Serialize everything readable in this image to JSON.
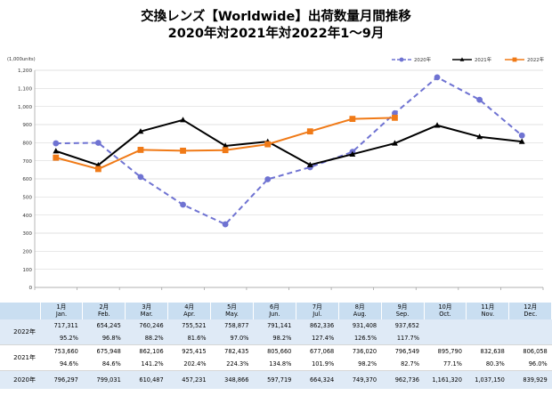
{
  "title_line1": "交換レンズ【Worldwide】出荷数量月間推移",
  "title_line2": "2020年対2021年対2022年1～9月",
  "chart_data": {
    "type": "line",
    "unit_label": "(1,000units)",
    "ylim": [
      0,
      1200
    ],
    "yticks": [
      "0",
      "100",
      "200",
      "300",
      "400",
      "500",
      "600",
      "700",
      "800",
      "900",
      "1,000",
      "1,100",
      "1,200"
    ],
    "grid": true,
    "legend_position": "top-right",
    "categories": [
      "1月",
      "2月",
      "3月",
      "4月",
      "5月",
      "6月",
      "7月",
      "8月",
      "9月",
      "10月",
      "11月",
      "12月"
    ],
    "series": [
      {
        "name": "2020年",
        "color": "#6f73d2",
        "dashed": true,
        "marker": "circle",
        "values": [
          796.297,
          799.031,
          610.487,
          457.231,
          348.866,
          597.719,
          664.324,
          749.37,
          962.736,
          1161.32,
          1037.15,
          839.929
        ]
      },
      {
        "name": "2021年",
        "color": "#000000",
        "dashed": false,
        "marker": "triangle",
        "values": [
          753.66,
          675.948,
          862.106,
          925.415,
          782.435,
          805.66,
          677.068,
          736.02,
          796.549,
          895.79,
          832.638,
          806.058
        ]
      },
      {
        "name": "2022年",
        "color": "#f07a17",
        "dashed": false,
        "marker": "square",
        "values": [
          717.311,
          654.245,
          760.246,
          755.521,
          758.877,
          791.141,
          862.336,
          931.408,
          937.652,
          null,
          null,
          null
        ]
      }
    ]
  },
  "table": {
    "months": [
      {
        "jp": "1月",
        "en": "Jan."
      },
      {
        "jp": "2月",
        "en": "Feb."
      },
      {
        "jp": "3月",
        "en": "Mar."
      },
      {
        "jp": "4月",
        "en": "Apr."
      },
      {
        "jp": "5月",
        "en": "May."
      },
      {
        "jp": "6月",
        "en": "Jun."
      },
      {
        "jp": "7月",
        "en": "Jul."
      },
      {
        "jp": "8月",
        "en": "Aug."
      },
      {
        "jp": "9月",
        "en": "Sep."
      },
      {
        "jp": "10月",
        "en": "Oct."
      },
      {
        "jp": "11月",
        "en": "Nov."
      },
      {
        "jp": "12月",
        "en": "Dec."
      }
    ],
    "rows": [
      {
        "label": "2022年",
        "values": [
          "717,311",
          "654,245",
          "760,246",
          "755,521",
          "758,877",
          "791,141",
          "862,336",
          "931,408",
          "937,652",
          "",
          "",
          ""
        ],
        "pcts": [
          "95.2%",
          "96.8%",
          "88.2%",
          "81.6%",
          "97.0%",
          "98.2%",
          "127.4%",
          "126.5%",
          "117.7%",
          "",
          "",
          ""
        ]
      },
      {
        "label": "2021年",
        "values": [
          "753,660",
          "675,948",
          "862,106",
          "925,415",
          "782,435",
          "805,660",
          "677,068",
          "736,020",
          "796,549",
          "895,790",
          "832,638",
          "806,058"
        ],
        "pcts": [
          "94.6%",
          "84.6%",
          "141.2%",
          "202.4%",
          "224.3%",
          "134.8%",
          "101.9%",
          "98.2%",
          "82.7%",
          "77.1%",
          "80.3%",
          "96.0%"
        ]
      },
      {
        "label": "2020年",
        "values": [
          "796,297",
          "799,031",
          "610,487",
          "457,231",
          "348,866",
          "597,719",
          "664,324",
          "749,370",
          "962,736",
          "1,161,320",
          "1,037,150",
          "839,929"
        ]
      }
    ]
  }
}
